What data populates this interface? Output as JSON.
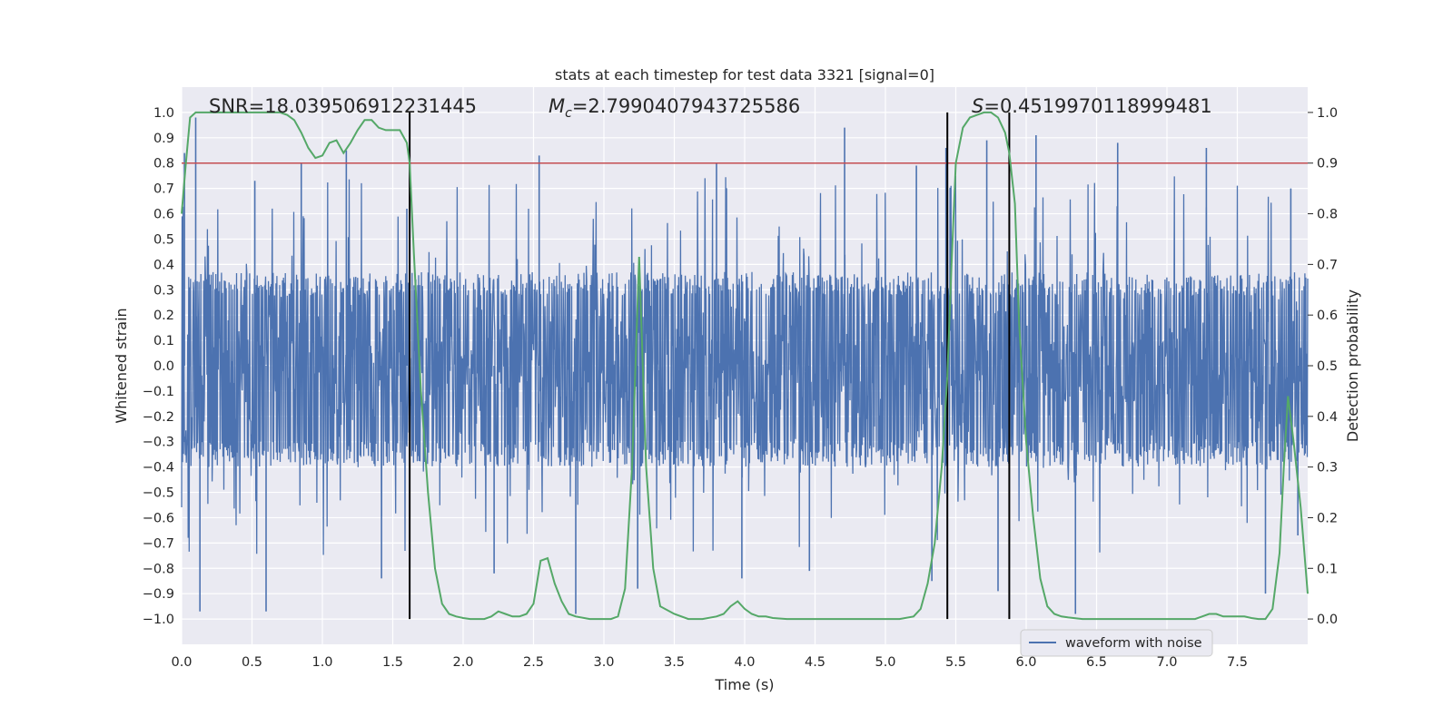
{
  "chart_data": {
    "type": "line",
    "title": "stats at each timestep for test data 3321 [signal=0]",
    "xlabel": "Time (s)",
    "ylabel_left": "Whitened strain",
    "ylabel_right": "Detection probability",
    "xlim": [
      0.0,
      8.0
    ],
    "ylim_left": [
      -1.1,
      1.1
    ],
    "ylim_right": [
      -0.05,
      1.05
    ],
    "x_ticks": [
      0.0,
      0.5,
      1.0,
      1.5,
      2.0,
      2.5,
      3.0,
      3.5,
      4.0,
      4.5,
      5.0,
      5.5,
      6.0,
      6.5,
      7.0,
      7.5
    ],
    "x_tick_labels": [
      "0.0",
      "0.5",
      "1.0",
      "1.5",
      "2.0",
      "2.5",
      "3.0",
      "3.5",
      "4.0",
      "4.5",
      "5.0",
      "5.5",
      "6.0",
      "6.5",
      "7.0",
      "7.5"
    ],
    "y_ticks_left": [
      1.0,
      0.9,
      0.8,
      0.7,
      0.6,
      0.5,
      0.4,
      0.3,
      0.2,
      0.1,
      0.0,
      -0.1,
      -0.2,
      -0.3,
      -0.4,
      -0.5,
      -0.6,
      -0.7,
      -0.8,
      -0.9,
      -1.0
    ],
    "y_tick_labels_left": [
      "1.0",
      "0.9",
      "0.8",
      "0.7",
      "0.6",
      "0.5",
      "0.4",
      "0.3",
      "0.2",
      "0.1",
      "0.0",
      "−0.1",
      "−0.2",
      "−0.3",
      "−0.4",
      "−0.5",
      "−0.6",
      "−0.7",
      "−0.8",
      "−0.9",
      "−1.0"
    ],
    "y_ticks_right": [
      1.0,
      0.9,
      0.8,
      0.7,
      0.6,
      0.5,
      0.4,
      0.3,
      0.2,
      0.1,
      0.0
    ],
    "y_tick_labels_right": [
      "1.0",
      "0.9",
      "0.8",
      "0.7",
      "0.6",
      "0.5",
      "0.4",
      "0.3",
      "0.2",
      "0.1",
      "0.0"
    ],
    "annotations": {
      "snr": "SNR=18.039506912231445",
      "mc_symbol": "M",
      "mc_sub": "c",
      "mc_value": "=2.7990407943725586",
      "s_symbol": "S",
      "s_value": "=0.4519970118999481"
    },
    "legend": {
      "label": "waveform with noise",
      "location": "lower-right"
    },
    "colors": {
      "waveform": "#4c72b0",
      "probability": "#55a868",
      "threshold": "#c44e52",
      "markers": "#000000",
      "background": "#eaeaf2",
      "grid": "#ffffff"
    },
    "threshold_probability": 0.9,
    "vertical_markers": [
      1.62,
      5.44,
      5.88
    ],
    "waveform": {
      "description_free": true,
      "n_points": 2400,
      "envelope_bulk": [
        -0.4,
        0.37
      ],
      "peaks_pos": [
        [
          0.02,
          0.84
        ],
        [
          0.1,
          0.98
        ],
        [
          0.52,
          0.73
        ],
        [
          0.85,
          0.8
        ],
        [
          1.17,
          0.85
        ],
        [
          1.6,
          0.62
        ],
        [
          2.54,
          0.83
        ],
        [
          3.8,
          0.8
        ],
        [
          4.71,
          0.94
        ],
        [
          5.22,
          0.79
        ],
        [
          5.43,
          0.86
        ],
        [
          5.72,
          0.89
        ],
        [
          6.07,
          0.91
        ],
        [
          6.65,
          0.88
        ],
        [
          7.28,
          0.86
        ],
        [
          7.88,
          0.7
        ]
      ],
      "peaks_neg": [
        [
          0.13,
          -0.97
        ],
        [
          0.6,
          -0.97
        ],
        [
          1.42,
          -0.84
        ],
        [
          2.22,
          -0.82
        ],
        [
          2.8,
          -0.98
        ],
        [
          3.24,
          -0.88
        ],
        [
          3.98,
          -0.84
        ],
        [
          4.46,
          -0.81
        ],
        [
          5.33,
          -0.85
        ],
        [
          5.8,
          -0.89
        ],
        [
          6.35,
          -0.98
        ],
        [
          7.7,
          -0.9
        ],
        [
          7.93,
          -0.67
        ]
      ]
    },
    "probability_series": {
      "x": [
        0.0,
        0.03,
        0.06,
        0.1,
        0.2,
        0.3,
        0.4,
        0.5,
        0.6,
        0.7,
        0.75,
        0.8,
        0.85,
        0.9,
        0.95,
        1.0,
        1.05,
        1.1,
        1.15,
        1.2,
        1.25,
        1.3,
        1.35,
        1.4,
        1.45,
        1.5,
        1.55,
        1.6,
        1.62,
        1.65,
        1.7,
        1.75,
        1.8,
        1.85,
        1.9,
        1.95,
        2.0,
        2.05,
        2.1,
        2.15,
        2.2,
        2.25,
        2.3,
        2.35,
        2.4,
        2.45,
        2.5,
        2.55,
        2.6,
        2.65,
        2.7,
        2.75,
        2.8,
        2.9,
        3.0,
        3.05,
        3.1,
        3.15,
        3.2,
        3.25,
        3.3,
        3.35,
        3.4,
        3.5,
        3.6,
        3.7,
        3.8,
        3.85,
        3.9,
        3.95,
        4.0,
        4.05,
        4.1,
        4.15,
        4.2,
        4.3,
        4.4,
        4.5,
        4.6,
        4.7,
        4.8,
        4.9,
        5.0,
        5.1,
        5.2,
        5.25,
        5.3,
        5.35,
        5.4,
        5.44,
        5.47,
        5.5,
        5.55,
        5.6,
        5.65,
        5.7,
        5.75,
        5.8,
        5.85,
        5.88,
        5.92,
        5.95,
        6.0,
        6.05,
        6.1,
        6.15,
        6.2,
        6.25,
        6.3,
        6.4,
        6.5,
        6.6,
        6.7,
        6.8,
        6.9,
        7.0,
        7.1,
        7.2,
        7.25,
        7.3,
        7.35,
        7.4,
        7.45,
        7.5,
        7.55,
        7.6,
        7.65,
        7.7,
        7.75,
        7.8,
        7.83,
        7.86,
        7.9,
        7.95,
        8.0
      ],
      "y": [
        0.8,
        0.9,
        0.99,
        1.0,
        1.0,
        1.0,
        1.0,
        1.0,
        1.0,
        1.0,
        0.995,
        0.985,
        0.96,
        0.93,
        0.91,
        0.915,
        0.94,
        0.945,
        0.92,
        0.94,
        0.965,
        0.985,
        0.985,
        0.97,
        0.965,
        0.965,
        0.965,
        0.94,
        0.9,
        0.72,
        0.45,
        0.25,
        0.1,
        0.03,
        0.01,
        0.005,
        0.002,
        0.0,
        0.0,
        0.0,
        0.005,
        0.015,
        0.01,
        0.005,
        0.005,
        0.01,
        0.03,
        0.115,
        0.12,
        0.07,
        0.035,
        0.01,
        0.005,
        0.0,
        0.0,
        0.0,
        0.005,
        0.06,
        0.3,
        0.715,
        0.3,
        0.1,
        0.025,
        0.01,
        0.0,
        0.0,
        0.005,
        0.01,
        0.025,
        0.035,
        0.02,
        0.01,
        0.005,
        0.005,
        0.002,
        0.0,
        0.0,
        0.0,
        0.0,
        0.0,
        0.0,
        0.0,
        0.0,
        0.0,
        0.005,
        0.02,
        0.07,
        0.15,
        0.3,
        0.48,
        0.7,
        0.9,
        0.97,
        0.99,
        0.995,
        1.0,
        1.0,
        0.99,
        0.96,
        0.92,
        0.82,
        0.58,
        0.35,
        0.2,
        0.08,
        0.025,
        0.01,
        0.005,
        0.003,
        0.0,
        0.0,
        0.0,
        0.0,
        0.0,
        0.0,
        0.0,
        0.0,
        0.0,
        0.005,
        0.01,
        0.01,
        0.005,
        0.005,
        0.005,
        0.005,
        0.002,
        0.0,
        0.0,
        0.02,
        0.13,
        0.3,
        0.44,
        0.35,
        0.22,
        0.05
      ]
    }
  }
}
